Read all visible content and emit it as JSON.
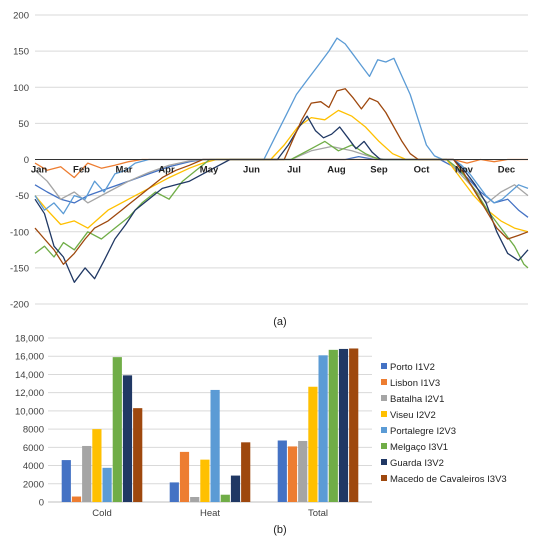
{
  "chart_data": [
    {
      "type": "line",
      "caption": "(a)",
      "ylim": [
        -200,
        200
      ],
      "yticks": [
        -200,
        -150,
        -100,
        -50,
        0,
        50,
        100,
        150,
        200
      ],
      "month_labels": [
        "Jan",
        "Feb",
        "Mar",
        "Apr",
        "May",
        "Jun",
        "Jul",
        "Aug",
        "Sep",
        "Oct",
        "Nov",
        "Dec"
      ],
      "x_day_range": [
        1,
        365
      ],
      "grid": "horizontal",
      "series": [
        {
          "color": "#4472C4",
          "points": [
            [
              1,
              -35
            ],
            [
              10,
              -45
            ],
            [
              20,
              -55
            ],
            [
              30,
              -60
            ],
            [
              40,
              -50
            ],
            [
              55,
              -40
            ],
            [
              70,
              -30
            ],
            [
              85,
              -20
            ],
            [
              100,
              -10
            ],
            [
              115,
              -3
            ],
            [
              125,
              0
            ],
            [
              230,
              0
            ],
            [
              240,
              4
            ],
            [
              252,
              0
            ],
            [
              300,
              0
            ],
            [
              310,
              -10
            ],
            [
              320,
              -25
            ],
            [
              330,
              -45
            ],
            [
              340,
              -60
            ],
            [
              350,
              -55
            ],
            [
              358,
              -70
            ],
            [
              365,
              -80
            ]
          ]
        },
        {
          "color": "#ED7D31",
          "points": [
            [
              1,
              -5
            ],
            [
              10,
              -15
            ],
            [
              20,
              -10
            ],
            [
              30,
              -25
            ],
            [
              40,
              -5
            ],
            [
              50,
              -12
            ],
            [
              60,
              -8
            ],
            [
              70,
              -3
            ],
            [
              80,
              0
            ],
            [
              310,
              0
            ],
            [
              320,
              -5
            ],
            [
              330,
              0
            ],
            [
              340,
              -3
            ],
            [
              350,
              0
            ],
            [
              365,
              0
            ]
          ]
        },
        {
          "color": "#A5A5A5",
          "points": [
            [
              1,
              -15
            ],
            [
              10,
              -30
            ],
            [
              20,
              -55
            ],
            [
              30,
              -45
            ],
            [
              40,
              -60
            ],
            [
              55,
              -45
            ],
            [
              70,
              -30
            ],
            [
              85,
              -18
            ],
            [
              100,
              -8
            ],
            [
              115,
              -2
            ],
            [
              125,
              0
            ],
            [
              190,
              0
            ],
            [
              205,
              12
            ],
            [
              220,
              18
            ],
            [
              235,
              12
            ],
            [
              250,
              3
            ],
            [
              260,
              0
            ],
            [
              305,
              0
            ],
            [
              315,
              -20
            ],
            [
              325,
              -40
            ],
            [
              335,
              -60
            ],
            [
              345,
              -45
            ],
            [
              355,
              -35
            ],
            [
              365,
              -50
            ]
          ]
        },
        {
          "color": "#FFC000",
          "points": [
            [
              1,
              -50
            ],
            [
              10,
              -70
            ],
            [
              20,
              -90
            ],
            [
              30,
              -85
            ],
            [
              40,
              -95
            ],
            [
              55,
              -70
            ],
            [
              70,
              -55
            ],
            [
              85,
              -40
            ],
            [
              100,
              -25
            ],
            [
              115,
              -12
            ],
            [
              125,
              -5
            ],
            [
              135,
              0
            ],
            [
              175,
              0
            ],
            [
              185,
              20
            ],
            [
              195,
              45
            ],
            [
              205,
              58
            ],
            [
              215,
              55
            ],
            [
              225,
              68
            ],
            [
              235,
              60
            ],
            [
              245,
              45
            ],
            [
              255,
              25
            ],
            [
              265,
              8
            ],
            [
              275,
              0
            ],
            [
              305,
              0
            ],
            [
              315,
              -25
            ],
            [
              325,
              -50
            ],
            [
              335,
              -70
            ],
            [
              345,
              -85
            ],
            [
              355,
              -95
            ],
            [
              365,
              -100
            ]
          ]
        },
        {
          "color": "#5B9BD5",
          "points": [
            [
              1,
              -50
            ],
            [
              8,
              -70
            ],
            [
              15,
              -60
            ],
            [
              22,
              -75
            ],
            [
              30,
              -50
            ],
            [
              38,
              -55
            ],
            [
              45,
              -30
            ],
            [
              52,
              -45
            ],
            [
              60,
              -20
            ],
            [
              68,
              -15
            ],
            [
              75,
              -5
            ],
            [
              85,
              0
            ],
            [
              170,
              0
            ],
            [
              178,
              30
            ],
            [
              186,
              60
            ],
            [
              194,
              90
            ],
            [
              202,
              110
            ],
            [
              210,
              130
            ],
            [
              218,
              150
            ],
            [
              224,
              168
            ],
            [
              230,
              160
            ],
            [
              236,
              145
            ],
            [
              242,
              130
            ],
            [
              248,
              115
            ],
            [
              254,
              138
            ],
            [
              260,
              135
            ],
            [
              266,
              140
            ],
            [
              272,
              115
            ],
            [
              278,
              90
            ],
            [
              284,
              55
            ],
            [
              290,
              20
            ],
            [
              296,
              5
            ],
            [
              302,
              0
            ],
            [
              310,
              0
            ],
            [
              316,
              -8
            ],
            [
              322,
              -20
            ],
            [
              328,
              -35
            ],
            [
              334,
              -50
            ],
            [
              340,
              -60
            ],
            [
              346,
              -55
            ],
            [
              352,
              -45
            ],
            [
              358,
              -35
            ],
            [
              365,
              -40
            ]
          ]
        },
        {
          "color": "#70AD47",
          "points": [
            [
              1,
              -130
            ],
            [
              8,
              -120
            ],
            [
              15,
              -135
            ],
            [
              22,
              -115
            ],
            [
              30,
              -125
            ],
            [
              40,
              -100
            ],
            [
              50,
              -110
            ],
            [
              60,
              -95
            ],
            [
              70,
              -80
            ],
            [
              80,
              -60
            ],
            [
              90,
              -45
            ],
            [
              100,
              -55
            ],
            [
              110,
              -30
            ],
            [
              120,
              -15
            ],
            [
              130,
              0
            ],
            [
              190,
              0
            ],
            [
              205,
              15
            ],
            [
              215,
              25
            ],
            [
              225,
              12
            ],
            [
              235,
              20
            ],
            [
              245,
              8
            ],
            [
              255,
              0
            ],
            [
              305,
              0
            ],
            [
              315,
              -15
            ],
            [
              325,
              -40
            ],
            [
              335,
              -70
            ],
            [
              345,
              -95
            ],
            [
              355,
              -120
            ],
            [
              362,
              -145
            ],
            [
              365,
              -150
            ]
          ]
        },
        {
          "color": "#203864",
          "points": [
            [
              1,
              -55
            ],
            [
              8,
              -75
            ],
            [
              15,
              -120
            ],
            [
              22,
              -135
            ],
            [
              30,
              -170
            ],
            [
              38,
              -150
            ],
            [
              45,
              -165
            ],
            [
              52,
              -140
            ],
            [
              60,
              -110
            ],
            [
              68,
              -90
            ],
            [
              75,
              -70
            ],
            [
              85,
              -55
            ],
            [
              95,
              -40
            ],
            [
              105,
              -35
            ],
            [
              115,
              -30
            ],
            [
              125,
              -20
            ],
            [
              135,
              -10
            ],
            [
              145,
              0
            ],
            [
              180,
              0
            ],
            [
              188,
              20
            ],
            [
              196,
              45
            ],
            [
              202,
              60
            ],
            [
              208,
              40
            ],
            [
              214,
              30
            ],
            [
              220,
              35
            ],
            [
              226,
              45
            ],
            [
              232,
              30
            ],
            [
              238,
              15
            ],
            [
              244,
              25
            ],
            [
              250,
              10
            ],
            [
              256,
              0
            ],
            [
              310,
              0
            ],
            [
              318,
              -15
            ],
            [
              326,
              -35
            ],
            [
              334,
              -60
            ],
            [
              342,
              -100
            ],
            [
              350,
              -130
            ],
            [
              358,
              -140
            ],
            [
              365,
              -125
            ]
          ]
        },
        {
          "color": "#9E480E",
          "points": [
            [
              1,
              -95
            ],
            [
              8,
              -110
            ],
            [
              15,
              -125
            ],
            [
              22,
              -145
            ],
            [
              30,
              -130
            ],
            [
              38,
              -110
            ],
            [
              45,
              -95
            ],
            [
              55,
              -85
            ],
            [
              65,
              -70
            ],
            [
              75,
              -55
            ],
            [
              85,
              -40
            ],
            [
              95,
              -25
            ],
            [
              105,
              -15
            ],
            [
              115,
              -8
            ],
            [
              125,
              0
            ],
            [
              185,
              0
            ],
            [
              192,
              30
            ],
            [
              198,
              55
            ],
            [
              205,
              78
            ],
            [
              212,
              80
            ],
            [
              218,
              72
            ],
            [
              224,
              95
            ],
            [
              230,
              98
            ],
            [
              236,
              85
            ],
            [
              242,
              70
            ],
            [
              248,
              85
            ],
            [
              254,
              80
            ],
            [
              260,
              65
            ],
            [
              266,
              45
            ],
            [
              272,
              25
            ],
            [
              278,
              8
            ],
            [
              284,
              0
            ],
            [
              310,
              0
            ],
            [
              318,
              -20
            ],
            [
              326,
              -45
            ],
            [
              334,
              -70
            ],
            [
              342,
              -95
            ],
            [
              350,
              -110
            ],
            [
              358,
              -105
            ],
            [
              365,
              -100
            ]
          ]
        }
      ]
    },
    {
      "type": "bar",
      "caption": "(b)",
      "categories": [
        "Cold",
        "Heat",
        "Total"
      ],
      "ylim": [
        0,
        18000
      ],
      "yticks": [
        "0",
        "2000",
        "4000",
        "6000",
        "8000",
        "10,000",
        "12,000",
        "14,000",
        "16,000",
        "18,000"
      ],
      "ytick_values": [
        0,
        2000,
        4000,
        6000,
        8000,
        10000,
        12000,
        14000,
        16000,
        18000
      ],
      "grid": "horizontal",
      "legend_position": "right",
      "series": [
        {
          "name": "Porto I1V2",
          "color": "#4472C4",
          "values": [
            4600,
            2150,
            6750
          ]
        },
        {
          "name": "Lisbon I1V3",
          "color": "#ED7D31",
          "values": [
            600,
            5500,
            6100
          ]
        },
        {
          "name": "Batalha I2V1",
          "color": "#A5A5A5",
          "values": [
            6150,
            550,
            6700
          ]
        },
        {
          "name": "Viseu I2V2",
          "color": "#FFC000",
          "values": [
            8000,
            4650,
            12650
          ]
        },
        {
          "name": "Portalegre I2V3",
          "color": "#5B9BD5",
          "values": [
            3750,
            12300,
            16100
          ]
        },
        {
          "name": "Melgaço I3V1",
          "color": "#70AD47",
          "values": [
            15900,
            800,
            16700
          ]
        },
        {
          "name": "Guarda I3V2",
          "color": "#203864",
          "values": [
            13900,
            2900,
            16800
          ]
        },
        {
          "name": "Macedo de Cavaleiros I3V3",
          "color": "#9E480E",
          "values": [
            10300,
            6550,
            16850
          ]
        }
      ]
    }
  ]
}
